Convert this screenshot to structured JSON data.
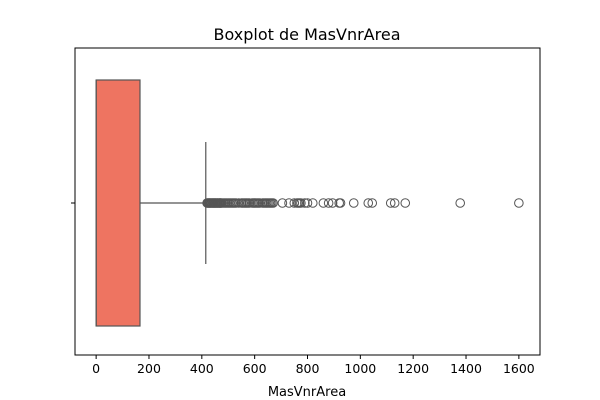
{
  "chart_data": {
    "type": "boxplot",
    "title": "Boxplot de MasVnrArea",
    "xlabel": "MasVnrArea",
    "ylabel": "",
    "orientation": "horizontal",
    "xlim": [
      -80,
      1680
    ],
    "xticks": [
      0,
      200,
      400,
      600,
      800,
      1000,
      1200,
      1400,
      1600
    ],
    "grid": false,
    "box": {
      "whisker_low": 0,
      "q1": 0,
      "median": 0,
      "q3": 166,
      "whisker_high": 415,
      "color": "#ee7461"
    },
    "outliers": [
      420,
      423,
      425,
      428,
      430,
      432,
      435,
      438,
      440,
      443,
      445,
      448,
      450,
      452,
      455,
      458,
      460,
      463,
      466,
      468,
      470,
      472,
      475,
      480,
      485,
      490,
      495,
      500,
      505,
      510,
      515,
      520,
      525,
      530,
      540,
      550,
      555,
      560,
      565,
      570,
      575,
      580,
      590,
      595,
      600,
      605,
      610,
      615,
      620,
      630,
      635,
      640,
      645,
      650,
      655,
      660,
      665,
      670,
      705,
      730,
      750,
      760,
      765,
      770,
      775,
      790,
      800,
      820,
      860,
      880,
      895,
      920,
      925,
      975,
      1030,
      1045,
      1115,
      1130,
      1170,
      1378,
      1600
    ]
  }
}
